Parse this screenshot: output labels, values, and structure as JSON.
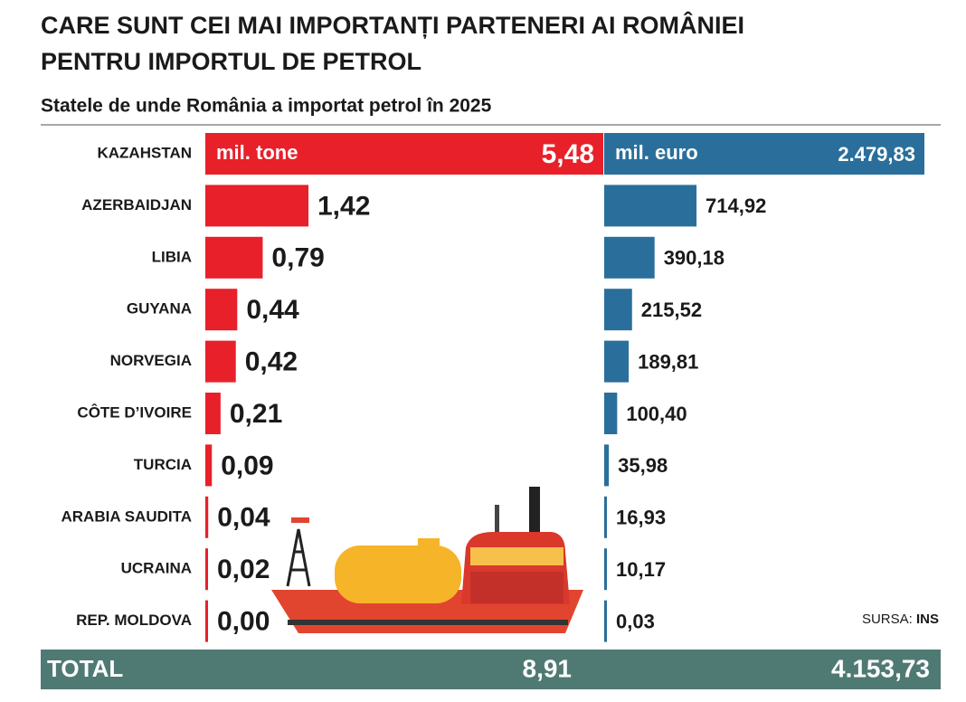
{
  "chart_data": {
    "type": "bar",
    "title": [
      "CARE SUNT CEI MAI IMPORTANȚI PARTENERI AI ROMÂNIEI",
      "PENTRU IMPORTUL DE PETROL"
    ],
    "subtitle": "Statele de unde România a importat petrol în 2025",
    "categories": [
      "KAZAHSTAN",
      "AZERBAIDJAN",
      "LIBIA",
      "GUYANA",
      "NORVEGIA",
      "CÔTE D’IVOIRE",
      "TURCIA",
      "ARABIA SAUDITA",
      "UCRAINA",
      "REP. MOLDOVA"
    ],
    "series": [
      {
        "name": "mil. tone",
        "color": "#e8202a",
        "values": [
          5.48,
          1.42,
          0.79,
          0.44,
          0.42,
          0.21,
          0.09,
          0.04,
          0.02,
          0.0
        ],
        "value_labels": [
          "5,48",
          "1,42",
          "0,79",
          "0,44",
          "0,42",
          "0,21",
          "0,09",
          "0,04",
          "0,02",
          "0,00"
        ],
        "total": 8.91,
        "total_label": "8,91"
      },
      {
        "name": "mil. euro",
        "color": "#2a6f9b",
        "values": [
          2479.83,
          714.92,
          390.18,
          215.52,
          189.81,
          100.4,
          35.98,
          16.93,
          10.17,
          0.03
        ],
        "value_labels": [
          "2.479,83",
          "714,92",
          "390,18",
          "215,52",
          "189,81",
          "100,40",
          "35,98",
          "16,93",
          "10,17",
          "0,03"
        ],
        "total": 4153.73,
        "total_label": "4.153,73"
      }
    ],
    "total_name": "TOTAL",
    "source_prefix": "SURSA:",
    "source": "INS"
  }
}
